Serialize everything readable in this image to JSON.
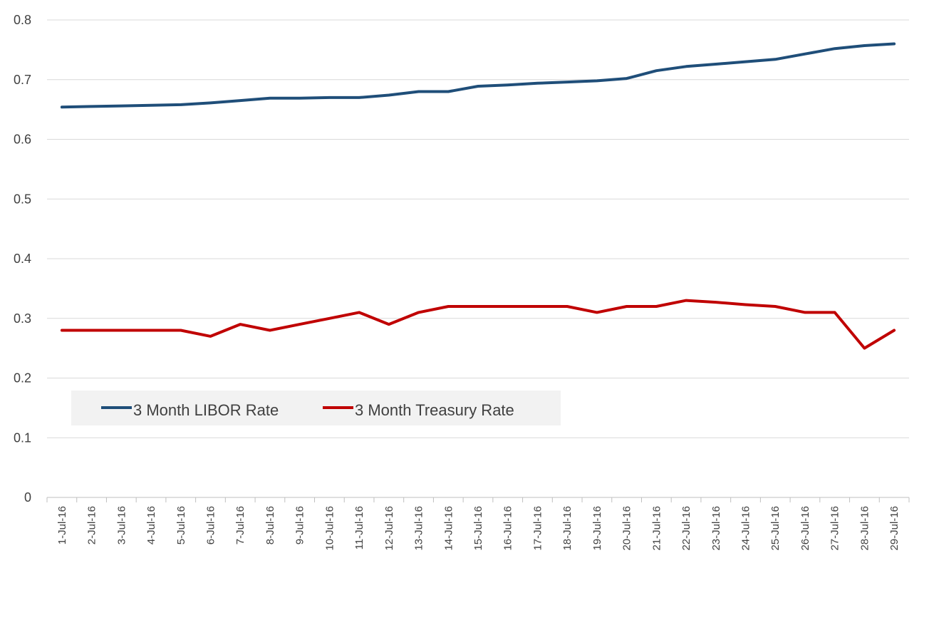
{
  "chart_data": {
    "type": "line",
    "title": "",
    "xlabel": "",
    "ylabel": "",
    "ylim": [
      0,
      0.8
    ],
    "yticks": [
      "0",
      "0.1",
      "0.2",
      "0.3",
      "0.4",
      "0.5",
      "0.6",
      "0.7",
      "0.8"
    ],
    "grid": true,
    "legend_position": "bottom-left",
    "categories": [
      "1-Jul-16",
      "2-Jul-16",
      "3-Jul-16",
      "4-Jul-16",
      "5-Jul-16",
      "6-Jul-16",
      "7-Jul-16",
      "8-Jul-16",
      "9-Jul-16",
      "10-Jul-16",
      "11-Jul-16",
      "12-Jul-16",
      "13-Jul-16",
      "14-Jul-16",
      "15-Jul-16",
      "16-Jul-16",
      "17-Jul-16",
      "18-Jul-16",
      "19-Jul-16",
      "20-Jul-16",
      "21-Jul-16",
      "22-Jul-16",
      "23-Jul-16",
      "24-Jul-16",
      "25-Jul-16",
      "26-Jul-16",
      "27-Jul-16",
      "28-Jul-16",
      "29-Jul-16"
    ],
    "series": [
      {
        "name": "3 Month LIBOR Rate",
        "color": "#1F4E79",
        "values": [
          0.654,
          0.655,
          0.656,
          0.657,
          0.658,
          0.661,
          0.665,
          0.669,
          0.669,
          0.67,
          0.67,
          0.674,
          0.68,
          0.68,
          0.689,
          0.691,
          0.694,
          0.696,
          0.698,
          0.702,
          0.715,
          0.722,
          0.726,
          0.73,
          0.734,
          0.743,
          0.752,
          0.757,
          0.76
        ]
      },
      {
        "name": "3 Month Treasury Rate",
        "color": "#C00000",
        "values": [
          0.28,
          0.28,
          0.28,
          0.28,
          0.28,
          0.27,
          0.29,
          0.28,
          0.29,
          0.3,
          0.31,
          0.29,
          0.31,
          0.32,
          0.32,
          0.32,
          0.32,
          0.32,
          0.31,
          0.32,
          0.32,
          0.33,
          0.327,
          0.323,
          0.32,
          0.31,
          0.31,
          0.25,
          0.28
        ]
      }
    ]
  }
}
